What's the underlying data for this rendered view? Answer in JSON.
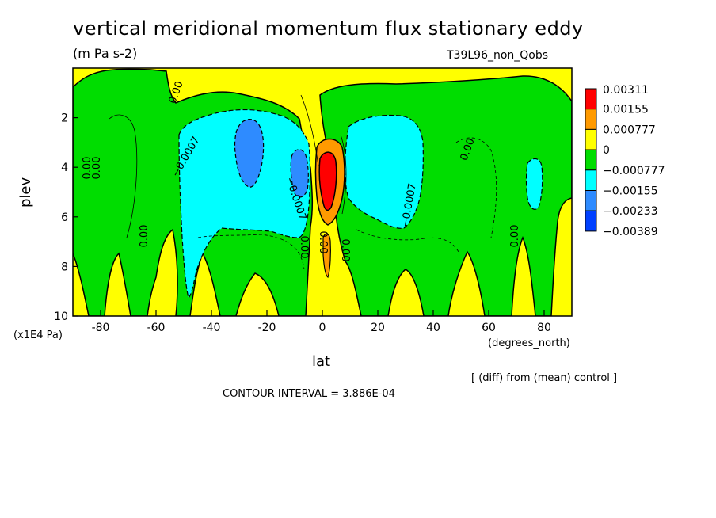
{
  "chart_data": {
    "type": "heatmap",
    "title": "vertical meridional momentum flux stationary eddy",
    "units": "(m Pa s-2)",
    "experiment": "T39L96_non_Qobs",
    "xlabel": "lat",
    "x_units": "(degrees_north)",
    "ylabel": "plev",
    "y_scale_note": "(x1E4 Pa)",
    "xlim": [
      -90,
      90
    ],
    "ylim": [
      10,
      0
    ],
    "x_ticks": [
      -80,
      -60,
      -40,
      -20,
      0,
      20,
      40,
      60,
      80
    ],
    "y_ticks": [
      2,
      4,
      6,
      8,
      10
    ],
    "contour_interval": "CONTOUR INTERVAL = 3.886E-04",
    "diff_note": "[ (diff) from (mean) control ]",
    "colorbar": {
      "labels": [
        "0.00311",
        "0.00155",
        "0.000777",
        "0",
        "−0.000777",
        "−0.00155",
        "−0.00233",
        "−0.00389"
      ],
      "colors": [
        "#ff0000",
        "#ff9a00",
        "#ffff00",
        "#00dd00",
        "#00ffff",
        "#2e8bff",
        "#0040ff"
      ]
    },
    "contour_labels": [
      "0.00",
      "0.00",
      "0.00",
      "0.00",
      "−0.0007",
      "−0.0007",
      "−0.0007",
      "0.00",
      "0.00",
      "0.00",
      "0.00",
      "0.00"
    ]
  }
}
